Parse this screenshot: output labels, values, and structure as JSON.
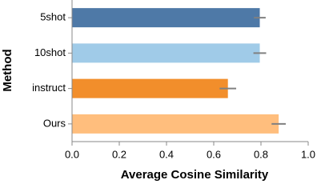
{
  "chart_data": {
    "type": "bar",
    "orientation": "horizontal",
    "xlabel": "Average Cosine Similarity",
    "ylabel": "Method",
    "categories": [
      "5shot",
      "10shot",
      "instruct",
      "Ours"
    ],
    "values": [
      0.795,
      0.795,
      0.66,
      0.875
    ],
    "errors": [
      0.025,
      0.027,
      0.035,
      0.03
    ],
    "colors": [
      "#4e79a7",
      "#a0cbe8",
      "#f28e2b",
      "#ffbe7d"
    ],
    "error_color": "#808080",
    "xlim": [
      0,
      1
    ],
    "xticks": [
      {
        "value": 0,
        "label": "0.0"
      },
      0.2,
      0.4,
      0.6,
      0.8,
      {
        "value": 1,
        "label": "1.0"
      }
    ]
  }
}
